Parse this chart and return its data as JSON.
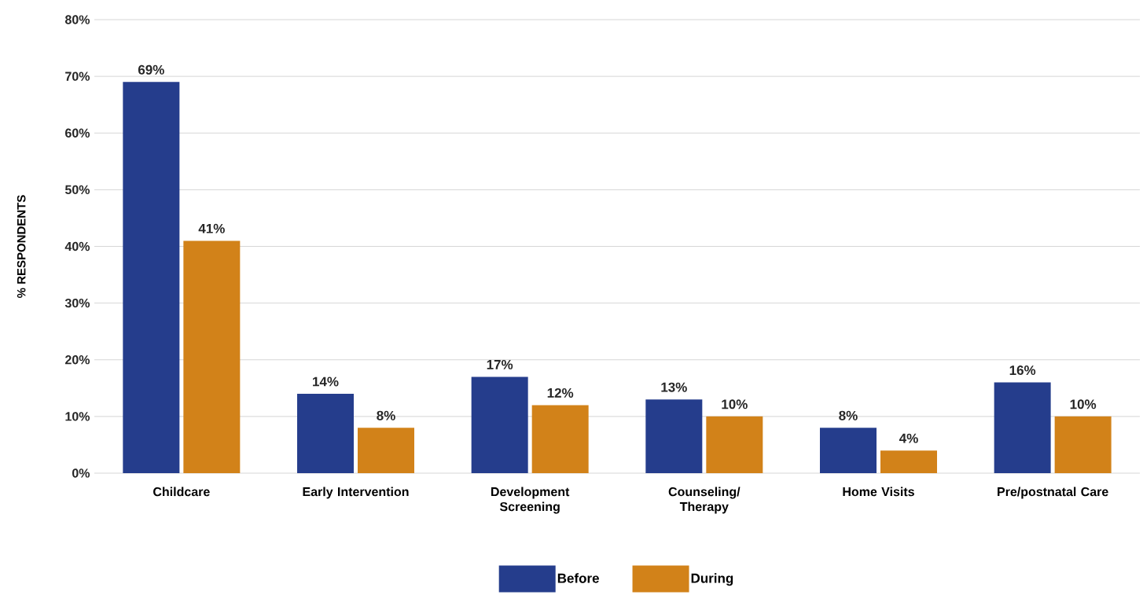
{
  "chart_data": {
    "type": "bar",
    "ylabel": "% RESPONDENTS",
    "categories": [
      "Childcare",
      "Early Intervention",
      "Development Screening",
      "Counseling/ Therapy",
      "Home Visits",
      "Pre/postnatal Care"
    ],
    "series": [
      {
        "name": "Before",
        "color": "#253d8c",
        "values": [
          69,
          14,
          17,
          13,
          8,
          16
        ],
        "value_labels": [
          "69%",
          "14%",
          "17%",
          "13%",
          "8%",
          "16%"
        ]
      },
      {
        "name": "During",
        "color": "#d28219",
        "values": [
          41,
          8,
          12,
          10,
          4,
          10
        ],
        "value_labels": [
          "41%",
          "8%",
          "12%",
          "10%",
          "4%",
          "10%"
        ]
      }
    ],
    "ylim": [
      0,
      80
    ],
    "yticks": [
      {
        "value": 0,
        "label": "0%"
      },
      {
        "value": 10,
        "label": "10%"
      },
      {
        "value": 20,
        "label": "20%"
      },
      {
        "value": 30,
        "label": "30%"
      },
      {
        "value": 40,
        "label": "40%"
      },
      {
        "value": 50,
        "label": "50%"
      },
      {
        "value": 60,
        "label": "60%"
      },
      {
        "value": 70,
        "label": "70%"
      },
      {
        "value": 80,
        "label": "80%"
      }
    ],
    "grid": "y",
    "legend": "bottom"
  }
}
